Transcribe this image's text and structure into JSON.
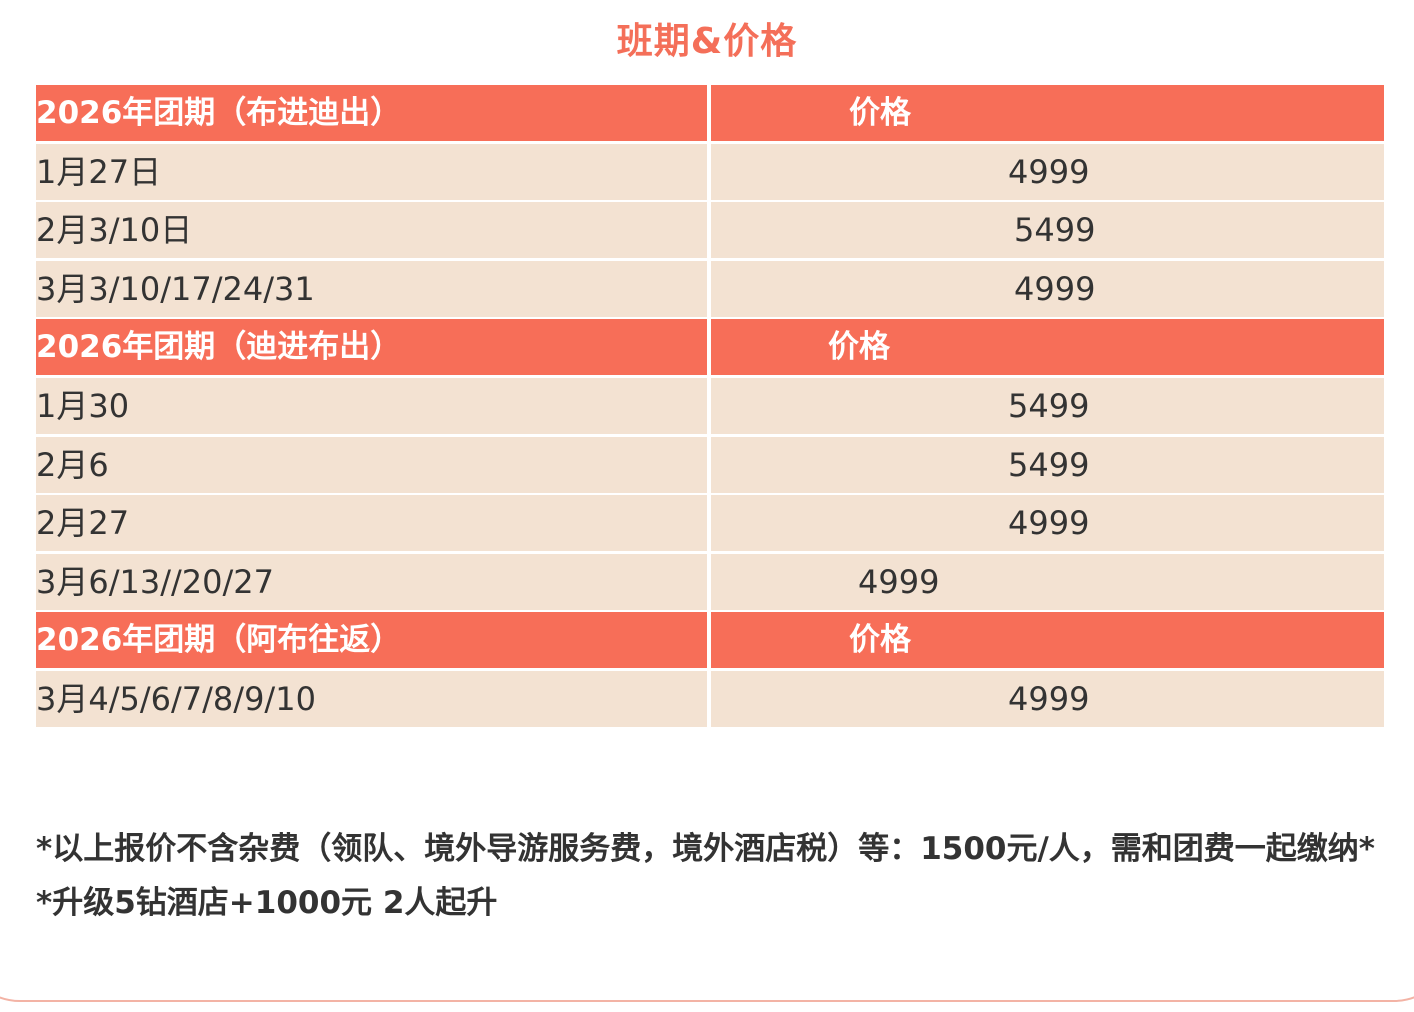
{
  "title": "班期&价格",
  "sections": [
    {
      "header": "2026年团期（布进迪出）",
      "price_label": "价格",
      "rows": [
        {
          "date": "1月27日",
          "price": "4999"
        },
        {
          "date": "2月3/10日",
          "price": "5499"
        },
        {
          "date": "3月3/10/17/24/31",
          "price": "4999"
        }
      ]
    },
    {
      "header": "2026年团期（迪进布出）",
      "price_label": "价格",
      "rows": [
        {
          "date": "1月30",
          "price": "5499"
        },
        {
          "date": "2月6",
          "price": "5499"
        },
        {
          "date": "2月27",
          "price": "4999"
        },
        {
          "date": "3月6/13//20/27",
          "price": "4999"
        }
      ]
    },
    {
      "header": "2026年团期（阿布往返）",
      "price_label": "价格",
      "rows": [
        {
          "date": "3月4/5/6/7/8/9/10",
          "price": "4999"
        }
      ]
    }
  ],
  "notes": [
    " *以上报价不含杂费（领队、境外导游服务费，境外酒店税）等：1500元/人，需和团费一起缴纳*",
    "*升级5钻酒店+1000元 2人起升"
  ]
}
